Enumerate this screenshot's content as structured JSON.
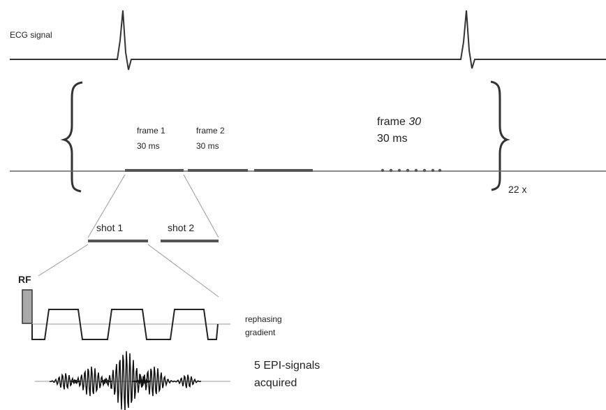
{
  "ecg": {
    "label": "ECG signal"
  },
  "frames": [
    {
      "name_prefix": "frame",
      "number": "1",
      "duration": "30 ms"
    },
    {
      "name_prefix": "frame",
      "number": "2",
      "duration": "30 ms"
    },
    {
      "name_prefix": "frame",
      "number": "30",
      "duration": "30 ms"
    }
  ],
  "repeat": {
    "label": "22 x"
  },
  "shots": [
    {
      "label": "shot 1"
    },
    {
      "label": "shot 2"
    }
  ],
  "rf": {
    "label": "RF"
  },
  "gradient": {
    "line1": "rephasing",
    "line2": "gradient"
  },
  "signals": {
    "line1": "5 EPI-signals",
    "line2": "acquired"
  }
}
